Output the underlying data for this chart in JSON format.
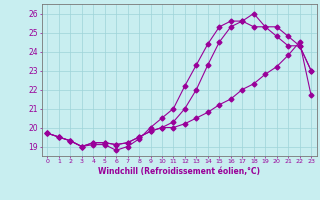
{
  "xlabel": "Windchill (Refroidissement éolien,°C)",
  "bg_color": "#c8eef0",
  "line_color": "#990099",
  "grid_color": "#9ed4d8",
  "xlim": [
    -0.5,
    23.5
  ],
  "ylim": [
    18.5,
    26.5
  ],
  "yticks": [
    19,
    20,
    21,
    22,
    23,
    24,
    25,
    26
  ],
  "xticks": [
    0,
    1,
    2,
    3,
    4,
    5,
    6,
    7,
    8,
    9,
    10,
    11,
    12,
    13,
    14,
    15,
    16,
    17,
    18,
    19,
    20,
    21,
    22,
    23
  ],
  "series1_x": [
    0,
    1,
    2,
    3,
    4,
    5,
    6,
    7,
    8,
    9,
    10,
    11,
    12,
    13,
    14,
    15,
    16,
    17,
    18,
    19,
    20,
    21,
    22,
    23
  ],
  "series1_y": [
    19.7,
    19.5,
    19.3,
    19.0,
    19.1,
    19.1,
    18.8,
    19.0,
    19.4,
    20.0,
    20.5,
    21.0,
    22.2,
    23.3,
    24.4,
    25.3,
    25.6,
    25.6,
    26.0,
    25.3,
    24.8,
    24.3,
    24.3,
    23.0
  ],
  "series2_x": [
    0,
    1,
    2,
    3,
    4,
    5,
    6,
    7,
    8,
    9,
    10,
    11,
    12,
    13,
    14,
    15,
    16,
    17,
    18,
    19,
    20,
    21,
    22,
    23
  ],
  "series2_y": [
    19.7,
    19.5,
    19.3,
    19.0,
    19.2,
    19.2,
    19.1,
    19.2,
    19.5,
    19.8,
    20.0,
    20.0,
    20.2,
    20.5,
    20.8,
    21.2,
    21.5,
    22.0,
    22.3,
    22.8,
    23.2,
    23.8,
    24.5,
    21.7
  ],
  "series3_x": [
    0,
    1,
    2,
    3,
    4,
    5,
    6,
    7,
    8,
    9,
    10,
    11,
    12,
    13,
    14,
    15,
    16,
    17,
    18,
    19,
    20,
    21,
    22,
    23
  ],
  "series3_y": [
    19.7,
    19.5,
    19.3,
    19.0,
    19.2,
    19.2,
    19.1,
    19.2,
    19.5,
    19.8,
    20.0,
    20.3,
    21.0,
    22.0,
    23.3,
    24.5,
    25.3,
    25.6,
    25.3,
    25.3,
    25.3,
    24.8,
    24.3,
    23.0
  ]
}
